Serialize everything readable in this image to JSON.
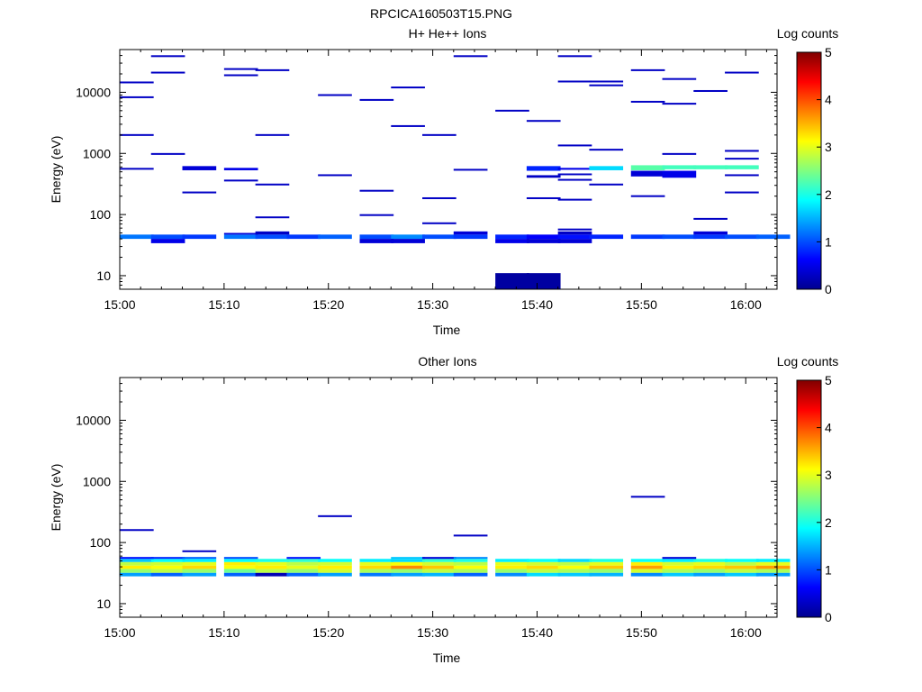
{
  "figure_title": "RPCICA160503T15.PNG",
  "colormap": [
    "#00008f",
    "#0000ff",
    "#0080ff",
    "#00ffff",
    "#80ff80",
    "#ffff00",
    "#ff8000",
    "#ff0000",
    "#800000"
  ],
  "chart_data": [
    {
      "type": "heatmap",
      "title": "H+ He++ Ions",
      "xlabel": "Time",
      "ylabel": "Energy (eV)",
      "colorbar_label": "Log counts",
      "xlim": [
        "15:00",
        "16:03"
      ],
      "ylim": [
        6,
        50000
      ],
      "yscale": "log",
      "clim": [
        0,
        5
      ],
      "x_ticks": [
        "15:00",
        "15:10",
        "15:20",
        "15:30",
        "15:40",
        "15:50",
        "16:00"
      ],
      "y_ticks": [
        "10",
        "100",
        "1000",
        "10000"
      ],
      "colorbar_ticks": [
        "0",
        "1",
        "2",
        "3",
        "4",
        "5"
      ],
      "time_bins": [
        "15:00",
        "15:03",
        "15:06",
        "15:10",
        "15:13",
        "15:16",
        "15:19",
        "15:23",
        "15:26",
        "15:29",
        "15:32",
        "15:36",
        "15:39",
        "15:42",
        "15:45",
        "15:49",
        "15:52",
        "15:55",
        "15:58",
        "16:01"
      ],
      "bin_minutes": 3.25,
      "cells": [
        [
          0,
          40,
          47,
          1.2
        ],
        [
          1,
          40,
          47,
          1.0
        ],
        [
          2,
          40,
          47,
          0.9
        ],
        [
          3,
          40,
          47,
          1.2
        ],
        [
          4,
          40,
          47,
          1.0
        ],
        [
          5,
          40,
          47,
          0.9
        ],
        [
          6,
          40,
          47,
          1.1
        ],
        [
          7,
          40,
          47,
          1.0
        ],
        [
          8,
          40,
          47,
          1.3
        ],
        [
          9,
          40,
          47,
          1.0
        ],
        [
          10,
          40,
          47,
          0.9
        ],
        [
          11,
          40,
          47,
          0.8
        ],
        [
          12,
          40,
          47,
          0.6
        ],
        [
          13,
          40,
          47,
          0.7
        ],
        [
          14,
          40,
          47,
          0.8
        ],
        [
          15,
          40,
          47,
          0.9
        ],
        [
          16,
          40,
          47,
          1.0
        ],
        [
          17,
          40,
          47,
          0.9
        ],
        [
          18,
          40,
          47,
          1.0
        ],
        [
          19,
          40,
          47,
          1.1
        ],
        [
          1,
          34,
          40,
          0.5
        ],
        [
          7,
          34,
          40,
          0.4
        ],
        [
          8,
          34,
          40,
          0.4
        ],
        [
          11,
          34,
          40,
          0.5
        ],
        [
          12,
          34,
          40,
          0.4
        ],
        [
          13,
          34,
          40,
          0.4
        ],
        [
          3,
          47,
          50,
          0.4
        ],
        [
          4,
          47,
          53,
          0.3
        ],
        [
          10,
          47,
          53,
          0.4
        ],
        [
          13,
          47,
          53,
          0.3
        ],
        [
          17,
          47,
          53,
          0.4
        ],
        [
          11,
          6,
          11,
          0.1
        ],
        [
          12,
          6,
          11,
          0.1
        ],
        [
          2,
          530,
          620,
          0.4
        ],
        [
          3,
          530,
          580,
          0.5
        ],
        [
          12,
          520,
          620,
          0.8
        ],
        [
          13,
          540,
          580,
          0.5
        ],
        [
          14,
          530,
          620,
          1.7
        ],
        [
          15,
          530,
          640,
          2.3
        ],
        [
          16,
          550,
          640,
          2.2
        ],
        [
          17,
          550,
          640,
          2.2
        ],
        [
          18,
          550,
          640,
          2.2
        ],
        [
          15,
          420,
          520,
          0.4
        ],
        [
          16,
          400,
          520,
          0.5
        ],
        [
          12,
          400,
          440,
          0.3
        ],
        [
          13,
          440,
          470,
          0.3
        ]
      ],
      "lines": [
        [
          0,
          14500,
          0.3
        ],
        [
          0,
          8300,
          0.3
        ],
        [
          0,
          2000,
          0.3
        ],
        [
          0,
          560,
          0.3
        ],
        [
          1,
          39000,
          0.3
        ],
        [
          1,
          21000,
          0.3
        ],
        [
          1,
          980,
          0.3
        ],
        [
          2,
          230,
          0.3
        ],
        [
          3,
          24000,
          0.3
        ],
        [
          3,
          19000,
          0.3
        ],
        [
          3,
          360,
          0.3
        ],
        [
          4,
          23000,
          0.3
        ],
        [
          4,
          2000,
          0.3
        ],
        [
          4,
          310,
          0.3
        ],
        [
          4,
          90,
          0.3
        ],
        [
          6,
          9000,
          0.3
        ],
        [
          6,
          440,
          0.3
        ],
        [
          7,
          7500,
          0.3
        ],
        [
          7,
          245,
          0.3
        ],
        [
          7,
          98,
          0.3
        ],
        [
          8,
          12000,
          0.3
        ],
        [
          8,
          2800,
          0.3
        ],
        [
          9,
          2000,
          0.3
        ],
        [
          9,
          185,
          0.3
        ],
        [
          9,
          72,
          0.3
        ],
        [
          10,
          39000,
          0.3
        ],
        [
          10,
          540,
          0.3
        ],
        [
          11,
          5000,
          0.3
        ],
        [
          12,
          3400,
          0.3
        ],
        [
          12,
          185,
          0.3
        ],
        [
          13,
          39000,
          0.3
        ],
        [
          13,
          15000,
          0.3
        ],
        [
          13,
          1350,
          0.3
        ],
        [
          13,
          370,
          0.3
        ],
        [
          13,
          175,
          0.3
        ],
        [
          13,
          57,
          0.3
        ],
        [
          14,
          15000,
          0.3
        ],
        [
          14,
          13000,
          0.3
        ],
        [
          14,
          1150,
          0.3
        ],
        [
          14,
          310,
          0.3
        ],
        [
          15,
          23000,
          0.3
        ],
        [
          15,
          7000,
          0.3
        ],
        [
          15,
          200,
          0.3
        ],
        [
          16,
          16500,
          0.3
        ],
        [
          16,
          6500,
          0.3
        ],
        [
          16,
          980,
          0.3
        ],
        [
          17,
          10500,
          0.3
        ],
        [
          17,
          85,
          0.3
        ],
        [
          18,
          21000,
          0.3
        ],
        [
          18,
          1100,
          0.3
        ],
        [
          18,
          820,
          0.3
        ],
        [
          18,
          440,
          0.3
        ],
        [
          18,
          230,
          0.3
        ]
      ]
    },
    {
      "type": "heatmap",
      "title": "Other Ions",
      "xlabel": "Time",
      "ylabel": "Energy (eV)",
      "colorbar_label": "Log counts",
      "xlim": [
        "15:00",
        "16:03"
      ],
      "ylim": [
        6,
        50000
      ],
      "yscale": "log",
      "clim": [
        0,
        5
      ],
      "x_ticks": [
        "15:00",
        "15:10",
        "15:20",
        "15:30",
        "15:40",
        "15:50",
        "16:00"
      ],
      "y_ticks": [
        "10",
        "100",
        "1000",
        "10000"
      ],
      "colorbar_ticks": [
        "0",
        "1",
        "2",
        "3",
        "4",
        "5"
      ],
      "time_bins": [
        "15:00",
        "15:03",
        "15:06",
        "15:10",
        "15:13",
        "15:16",
        "15:19",
        "15:23",
        "15:26",
        "15:29",
        "15:32",
        "15:36",
        "15:39",
        "15:42",
        "15:45",
        "15:49",
        "15:52",
        "15:55",
        "15:58",
        "16:01"
      ],
      "bin_minutes": 3.25,
      "rows": [
        {
          "e_low": 28,
          "e_high": 32,
          "values": [
            1.4,
            1.1,
            1.4,
            1.1,
            0.2,
            1.1,
            1.4,
            1.2,
            1.4,
            1.5,
            1.1,
            1.3,
            1.7,
            1.6,
            1.5,
            1.3,
            1.6,
            1.4,
            1.6,
            1.4
          ]
        },
        {
          "e_low": 32,
          "e_high": 37,
          "values": [
            2.6,
            2.8,
            2.6,
            2.4,
            2.8,
            2.6,
            2.9,
            2.7,
            2.6,
            2.8,
            2.7,
            2.6,
            2.8,
            2.7,
            2.6,
            2.9,
            2.7,
            2.6,
            2.8,
            2.7
          ]
        },
        {
          "e_low": 37,
          "e_high": 42,
          "values": [
            3.2,
            3.1,
            3.3,
            3.1,
            3.2,
            3.0,
            3.2,
            3.3,
            3.7,
            3.4,
            3.1,
            3.2,
            3.3,
            3.1,
            3.4,
            3.6,
            3.2,
            3.3,
            3.4,
            3.6
          ]
        },
        {
          "e_low": 42,
          "e_high": 48,
          "values": [
            2.8,
            2.9,
            3.0,
            3.2,
            3.0,
            2.8,
            2.9,
            3.0,
            3.1,
            2.9,
            2.8,
            3.0,
            2.9,
            2.8,
            3.0,
            3.2,
            2.9,
            3.0,
            2.8,
            3.0
          ]
        },
        {
          "e_low": 48,
          "e_high": 54,
          "values": [
            1.6,
            1.9,
            1.8,
            1.9,
            2.0,
            2.1,
            1.9,
            1.8,
            1.7,
            2.1,
            2.0,
            1.8,
            1.9,
            1.7,
            2.0,
            1.9,
            1.8,
            2.0,
            1.9,
            1.8
          ]
        },
        {
          "e_low": 54,
          "e_high": 58,
          "values": [
            0.7,
            0.8,
            1.1,
            1.0,
            null,
            0.7,
            null,
            null,
            1.6,
            0.4,
            1.3,
            null,
            null,
            null,
            null,
            null,
            0.4,
            null,
            null,
            null
          ]
        }
      ],
      "lines": [
        [
          0,
          160,
          0.3
        ],
        [
          2,
          72,
          0.3
        ],
        [
          6,
          270,
          0.3
        ],
        [
          10,
          130,
          0.3
        ],
        [
          15,
          560,
          0.3
        ]
      ]
    }
  ]
}
